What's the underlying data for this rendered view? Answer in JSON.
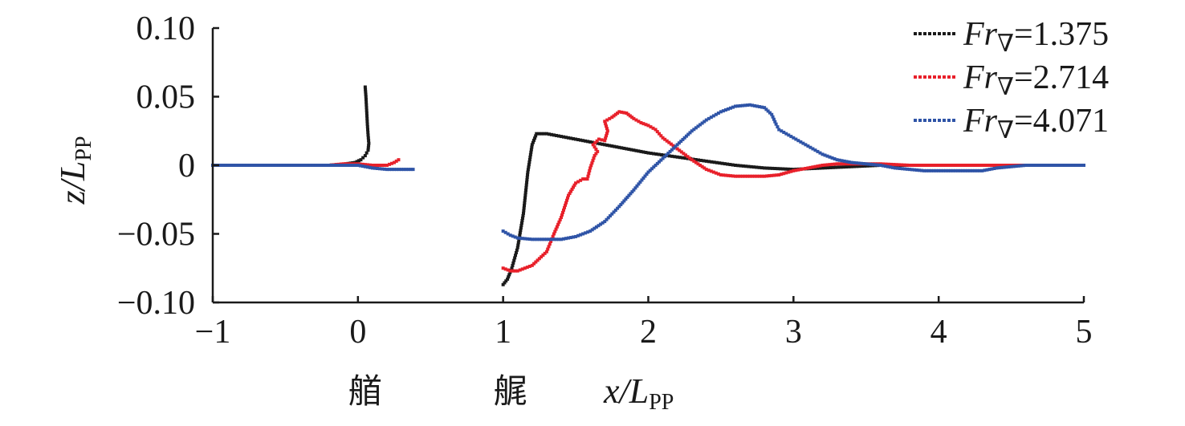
{
  "chart_data": {
    "type": "scatter",
    "xlabel": {
      "main": "x/L",
      "sub": "PP"
    },
    "ylabel": {
      "main": "z/L",
      "sub": "PP"
    },
    "xlim": [
      -1,
      5
    ],
    "ylim": [
      -0.1,
      0.1
    ],
    "x_ticks": [
      -1,
      0,
      1,
      2,
      3,
      4,
      5
    ],
    "x_tick_labels": [
      "−1",
      "0",
      "1",
      "2",
      "3",
      "4",
      "5"
    ],
    "y_ticks": [
      0.1,
      0.05,
      0,
      -0.05,
      -0.1
    ],
    "y_tick_labels": [
      "0.10",
      "0.05",
      "0",
      "−0.05",
      "−0.10"
    ],
    "x_annotations": [
      {
        "x": 0.05,
        "text": "艏"
      },
      {
        "x": 1.05,
        "text": "艉"
      }
    ],
    "grid": false,
    "legend_position": "top-right",
    "series": [
      {
        "name": "Fr∇=1.375",
        "legend_label_prefix": "Fr",
        "legend_label_subscript": "∇",
        "legend_label_value": "=1.375",
        "color": "#1a1a1a",
        "segments": [
          {
            "points": [
              [
                -1.0,
                0.0
              ],
              [
                -0.8,
                0.0
              ],
              [
                -0.6,
                0.0
              ],
              [
                -0.4,
                0.0
              ],
              [
                -0.2,
                0.0
              ],
              [
                -0.1,
                0.0008
              ],
              [
                -0.02,
                0.002
              ],
              [
                0.02,
                0.004
              ],
              [
                0.05,
                0.007
              ],
              [
                0.07,
                0.011
              ],
              [
                0.075,
                0.016
              ],
              [
                0.07,
                0.022
              ],
              [
                0.065,
                0.03
              ],
              [
                0.06,
                0.04
              ],
              [
                0.055,
                0.05
              ],
              [
                0.05,
                0.057
              ]
            ]
          },
          {
            "points": [
              [
                1.0,
                -0.087
              ],
              [
                1.03,
                -0.083
              ],
              [
                1.06,
                -0.075
              ],
              [
                1.1,
                -0.06
              ],
              [
                1.14,
                -0.035
              ],
              [
                1.17,
                -0.005
              ],
              [
                1.2,
                0.015
              ],
              [
                1.23,
                0.023
              ],
              [
                1.3,
                0.023
              ],
              [
                1.4,
                0.021
              ],
              [
                1.6,
                0.017
              ],
              [
                1.8,
                0.013
              ],
              [
                2.0,
                0.009
              ],
              [
                2.2,
                0.006
              ],
              [
                2.4,
                0.003
              ],
              [
                2.6,
                0.0
              ],
              [
                2.8,
                -0.002
              ],
              [
                3.0,
                -0.003
              ],
              [
                3.2,
                -0.002
              ],
              [
                3.4,
                -0.001
              ],
              [
                3.6,
                0.0
              ],
              [
                3.8,
                0.0
              ],
              [
                4.0,
                0.0
              ],
              [
                4.2,
                0.0
              ],
              [
                4.3,
                0.0
              ]
            ]
          }
        ]
      },
      {
        "name": "Fr∇=2.714",
        "legend_label_prefix": "Fr",
        "legend_label_subscript": "∇",
        "legend_label_value": "=2.714",
        "color": "#e8202a",
        "segments": [
          {
            "points": [
              [
                -0.2,
                0.0
              ],
              [
                -0.1,
                0.001
              ],
              [
                0.0,
                0.001
              ],
              [
                0.1,
                0.0
              ],
              [
                0.2,
                0.0
              ],
              [
                0.25,
                0.002
              ],
              [
                0.28,
                0.004
              ]
            ]
          },
          {
            "points": [
              [
                1.0,
                -0.075
              ],
              [
                1.05,
                -0.077
              ],
              [
                1.1,
                -0.077
              ],
              [
                1.2,
                -0.073
              ],
              [
                1.3,
                -0.063
              ],
              [
                1.35,
                -0.05
              ],
              [
                1.4,
                -0.038
              ],
              [
                1.45,
                -0.022
              ],
              [
                1.5,
                -0.013
              ],
              [
                1.55,
                -0.01
              ],
              [
                1.58,
                -0.01
              ],
              [
                1.6,
                -0.002
              ],
              [
                1.63,
                0.007
              ],
              [
                1.65,
                0.01
              ],
              [
                1.62,
                0.015
              ],
              [
                1.66,
                0.019
              ],
              [
                1.7,
                0.018
              ],
              [
                1.72,
                0.025
              ],
              [
                1.7,
                0.032
              ],
              [
                1.75,
                0.035
              ],
              [
                1.8,
                0.039
              ],
              [
                1.85,
                0.038
              ],
              [
                1.9,
                0.034
              ],
              [
                1.95,
                0.031
              ],
              [
                2.0,
                0.029
              ],
              [
                2.05,
                0.026
              ],
              [
                2.1,
                0.02
              ],
              [
                2.2,
                0.012
              ],
              [
                2.3,
                0.004
              ],
              [
                2.4,
                -0.003
              ],
              [
                2.5,
                -0.007
              ],
              [
                2.6,
                -0.008
              ],
              [
                2.7,
                -0.008
              ],
              [
                2.8,
                -0.008
              ],
              [
                2.9,
                -0.007
              ],
              [
                3.0,
                -0.004
              ],
              [
                3.1,
                -0.002
              ],
              [
                3.2,
                0.0
              ],
              [
                3.3,
                0.001
              ],
              [
                3.4,
                0.001
              ],
              [
                3.6,
                0.001
              ],
              [
                3.8,
                0.0
              ],
              [
                4.0,
                0.0
              ],
              [
                4.3,
                0.0
              ],
              [
                4.6,
                0.0
              ],
              [
                5.0,
                0.0
              ]
            ]
          }
        ]
      },
      {
        "name": "Fr∇=4.071",
        "legend_label_prefix": "Fr",
        "legend_label_subscript": "∇",
        "legend_label_value": "=4.071",
        "color": "#2f54a7",
        "segments": [
          {
            "points": [
              [
                -1.0,
                0.0
              ],
              [
                -0.8,
                0.0
              ],
              [
                -0.6,
                0.0
              ],
              [
                -0.4,
                0.0
              ],
              [
                -0.2,
                0.0
              ],
              [
                -0.1,
                0.0
              ],
              [
                0.0,
                0.0
              ],
              [
                0.1,
                -0.002
              ],
              [
                0.2,
                -0.003
              ],
              [
                0.3,
                -0.003
              ],
              [
                0.38,
                -0.003
              ]
            ]
          },
          {
            "points": [
              [
                1.0,
                -0.048
              ],
              [
                1.05,
                -0.051
              ],
              [
                1.1,
                -0.053
              ],
              [
                1.2,
                -0.054
              ],
              [
                1.3,
                -0.054
              ],
              [
                1.4,
                -0.054
              ],
              [
                1.5,
                -0.052
              ],
              [
                1.6,
                -0.048
              ],
              [
                1.7,
                -0.041
              ],
              [
                1.8,
                -0.03
              ],
              [
                1.9,
                -0.018
              ],
              [
                2.0,
                -0.005
              ],
              [
                2.1,
                0.005
              ],
              [
                2.2,
                0.015
              ],
              [
                2.3,
                0.025
              ],
              [
                2.4,
                0.033
              ],
              [
                2.5,
                0.039
              ],
              [
                2.6,
                0.043
              ],
              [
                2.7,
                0.044
              ],
              [
                2.8,
                0.042
              ],
              [
                2.85,
                0.037
              ],
              [
                2.88,
                0.03
              ],
              [
                2.9,
                0.026
              ],
              [
                3.0,
                0.02
              ],
              [
                3.1,
                0.014
              ],
              [
                3.2,
                0.008
              ],
              [
                3.3,
                0.004
              ],
              [
                3.4,
                0.002
              ],
              [
                3.5,
                0.001
              ],
              [
                3.6,
                0.0
              ],
              [
                3.7,
                -0.002
              ],
              [
                3.8,
                -0.003
              ],
              [
                3.9,
                -0.004
              ],
              [
                4.0,
                -0.004
              ],
              [
                4.1,
                -0.004
              ],
              [
                4.2,
                -0.004
              ],
              [
                4.3,
                -0.004
              ],
              [
                4.4,
                -0.002
              ],
              [
                4.5,
                -0.001
              ],
              [
                4.6,
                0.0
              ],
              [
                4.8,
                0.0
              ],
              [
                5.0,
                0.0
              ]
            ]
          }
        ]
      }
    ]
  }
}
